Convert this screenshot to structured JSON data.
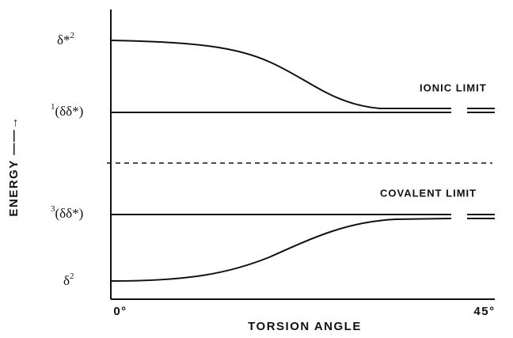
{
  "levels": [
    {
      "base": "δ*",
      "sup": "2"
    },
    {
      "sup": "1",
      "base": "(δδ*)"
    },
    {
      "sup": "3",
      "base": "(δδ*)"
    },
    {
      "base": "δ",
      "sup": "2"
    }
  ],
  "annotations": {
    "ionic": "IONIC LIMIT",
    "covalent": "COVALENT LIMIT"
  },
  "x_axis": {
    "title": "TORSION ANGLE",
    "ticks": [
      "0°",
      "45°"
    ]
  },
  "y_axis": {
    "title": "ENERGY ——→"
  }
}
